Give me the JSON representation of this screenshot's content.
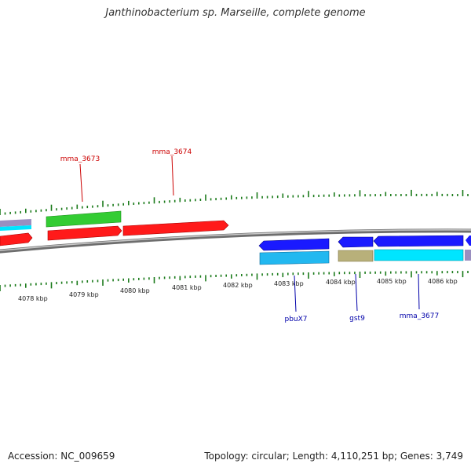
{
  "title": "Janthinobacterium sp. Marseille, complete genome",
  "footer": {
    "accession": "Accession: NC_009659",
    "summary": "Topology: circular; Length: 4,110,251 bp; Genes: 3,749"
  },
  "kbp_labels": [
    "4078 kbp",
    "4079 kbp",
    "4080 kbp",
    "4081 kbp",
    "4082 kbp",
    "4083 kbp",
    "4084 kbp",
    "4085 kbp",
    "4086 kbp"
  ],
  "gene_labels": {
    "mma_3673": "mma_3673",
    "mma_3674": "mma_3674",
    "pbuX7": "pbuX7",
    "gst9": "gst9",
    "mma_3677": "mma_3677"
  },
  "colors": {
    "backbone": "#8a8a8a",
    "ticks": "#1a7a1a",
    "red": "#ff1a1a",
    "green": "#33cc33",
    "blue": "#1a1aff",
    "cyan": "#00e5ff",
    "sky": "#22b8f0",
    "khaki": "#b8b07a",
    "forward_label": "#cc0000",
    "reverse_label": "#0000aa"
  }
}
